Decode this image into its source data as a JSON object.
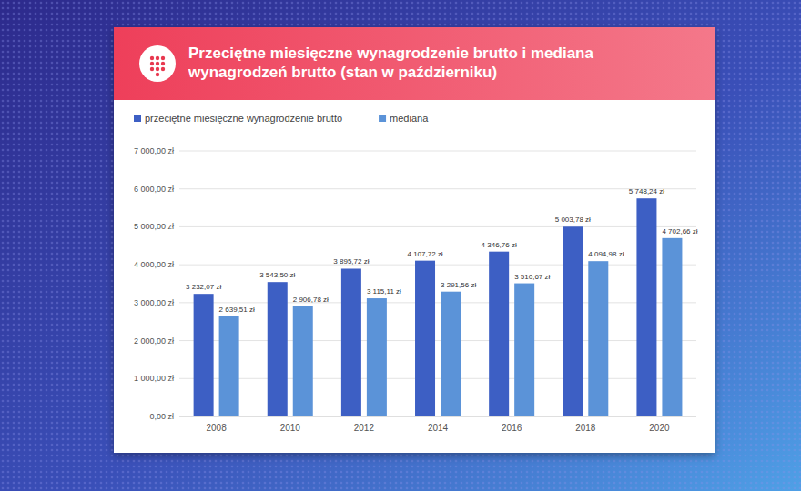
{
  "chart_data": {
    "type": "bar",
    "title": "Przeciętne miesięczne wynagrodzenie brutto i mediana wynagrodzeń brutto (stan w październiku)",
    "categories": [
      "2008",
      "2010",
      "2012",
      "2014",
      "2016",
      "2018",
      "2020"
    ],
    "series": [
      {
        "name": "przeciętne miesięczne wynagrodzenie brutto",
        "color": "#3d5fc4",
        "values": [
          3232.07,
          3543.5,
          3895.72,
          4107.72,
          4346.76,
          5003.78,
          5748.24
        ],
        "value_labels": [
          "3 232,07 zł",
          "3 543,50 zł",
          "3 895,72 zł",
          "4 107,72 zł",
          "4 346,76 zł",
          "5 003,78 zł",
          "5 748,24 zł"
        ]
      },
      {
        "name": "mediana",
        "color": "#5b93d8",
        "values": [
          2639.51,
          2906.78,
          3115.11,
          3291.56,
          3510.67,
          4094.98,
          4702.66
        ],
        "value_labels": [
          "2 639,51 zł",
          "2 906,78 zł",
          "3 115,11 zł",
          "3 291,56 zł",
          "3 510,67 zł",
          "4 094,98 zł",
          "4 702,66 zł"
        ]
      }
    ],
    "ylim": [
      0,
      7000
    ],
    "yticks": [
      {
        "value": 0,
        "label": "0,00 zł"
      },
      {
        "value": 1000,
        "label": "1 000,00 zł"
      },
      {
        "value": 2000,
        "label": "2 000,00 zł"
      },
      {
        "value": 3000,
        "label": "3 000,00 zł"
      },
      {
        "value": 4000,
        "label": "4 000,00 zł"
      },
      {
        "value": 5000,
        "label": "5 000,00 zł"
      },
      {
        "value": 6000,
        "label": "6 000,00 zł"
      },
      {
        "value": 7000,
        "label": "7 000,00 zł"
      }
    ],
    "grid": true,
    "legend": "top",
    "data_labels": true
  }
}
